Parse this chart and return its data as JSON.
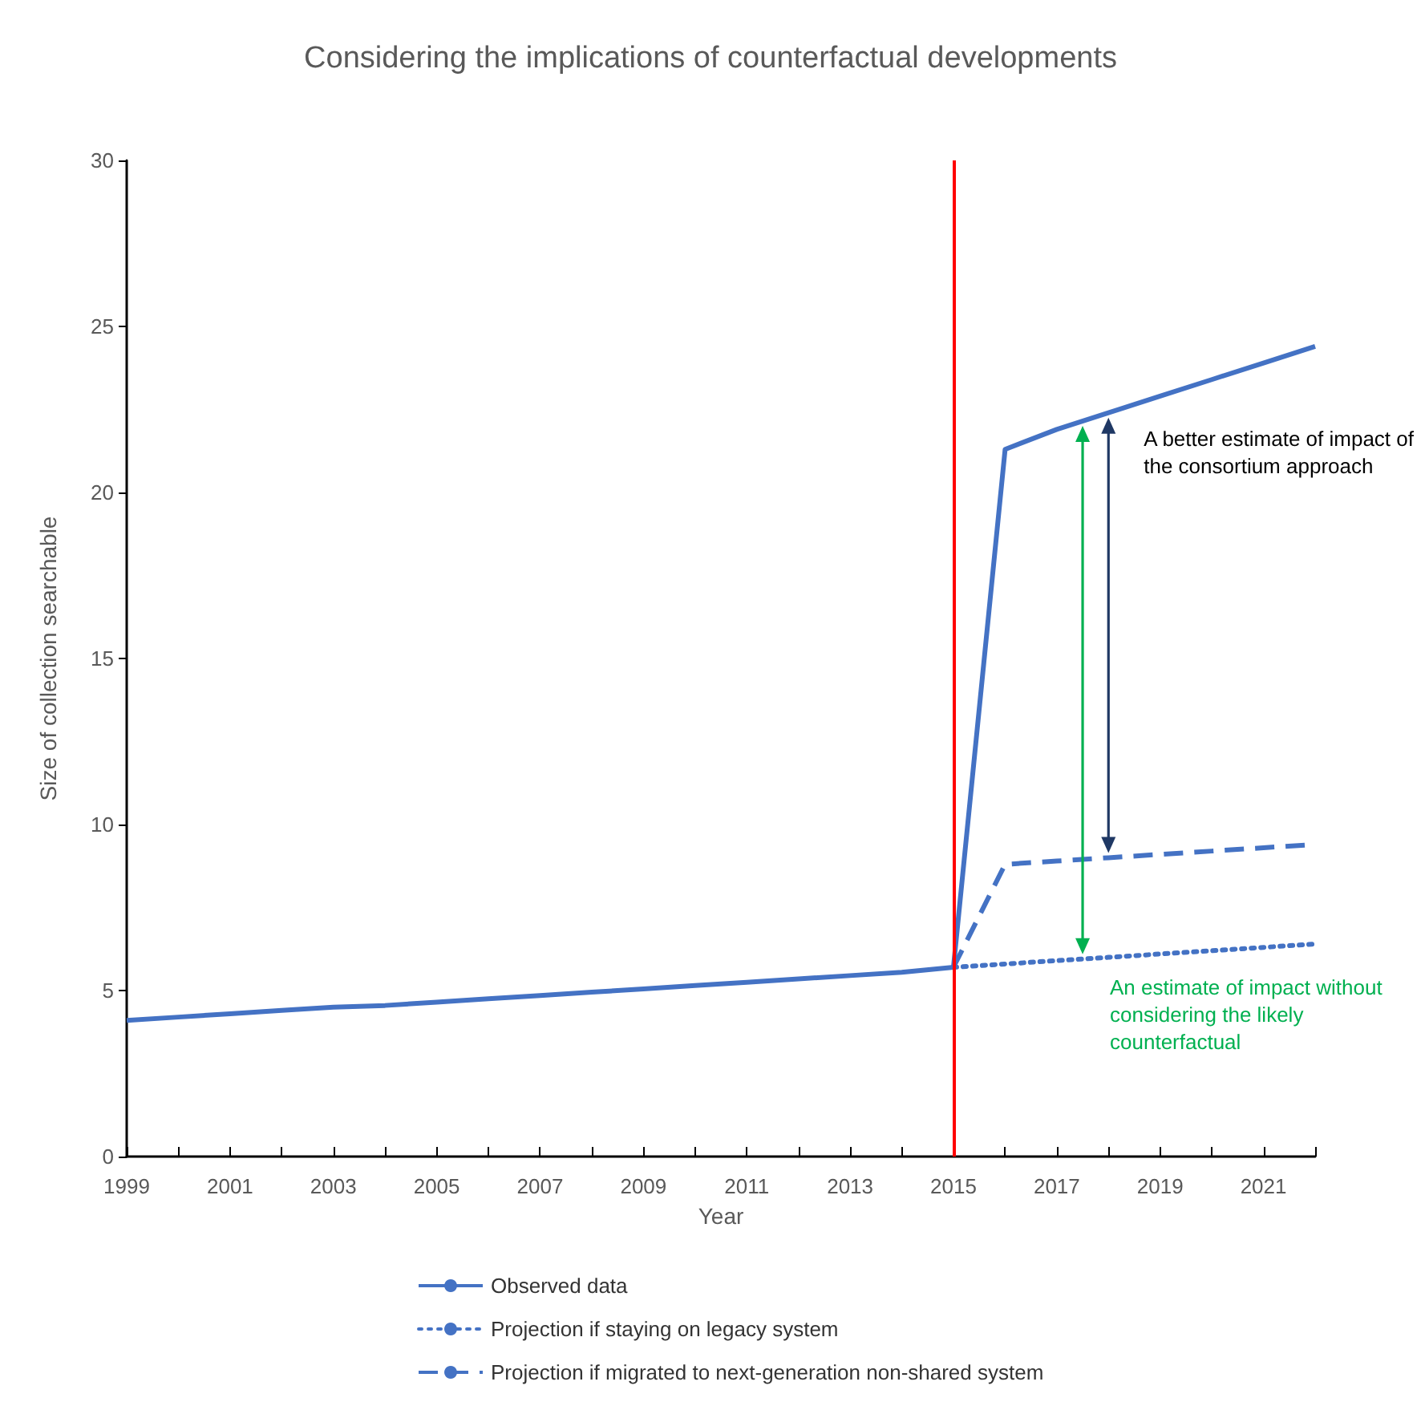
{
  "chart_data": {
    "type": "line",
    "title": "Considering the implications of counterfactual developments",
    "xlabel": "Year",
    "ylabel": "Size of collection searchable",
    "series": [
      {
        "name": "Observed data",
        "color": "#4472c4",
        "line_style": "solid",
        "x": [
          1999,
          2000,
          2001,
          2002,
          2003,
          2004,
          2005,
          2006,
          2007,
          2008,
          2009,
          2010,
          2011,
          2012,
          2013,
          2014,
          2015,
          2016,
          2017,
          2018,
          2019,
          2020,
          2021,
          2022
        ],
        "values": [
          4.1,
          4.2,
          4.3,
          4.4,
          4.5,
          4.55,
          4.65,
          4.75,
          4.85,
          4.95,
          5.05,
          5.15,
          5.25,
          5.35,
          5.45,
          5.55,
          5.7,
          21.3,
          21.9,
          22.4,
          22.9,
          23.4,
          23.9,
          24.4
        ]
      },
      {
        "name": "Projection if staying on legacy system",
        "color": "#4472c4",
        "line_style": "dotted",
        "x": [
          2015,
          2016,
          2017,
          2018,
          2019,
          2020,
          2021,
          2022
        ],
        "values": [
          5.7,
          5.8,
          5.9,
          6.0,
          6.1,
          6.2,
          6.3,
          6.4
        ]
      },
      {
        "name": "Projection if migrated to next-generation non-shared system",
        "color": "#4472c4",
        "line_style": "dashed",
        "x": [
          2015,
          2016,
          2017,
          2018,
          2019,
          2020,
          2021,
          2022
        ],
        "values": [
          5.7,
          8.8,
          8.9,
          9.0,
          9.1,
          9.2,
          9.3,
          9.4
        ]
      }
    ],
    "xlim": [
      1999,
      2022
    ],
    "xticks": [
      1999,
      {
        "value": 2000,
        "label": null
      },
      2001,
      {
        "value": 2002,
        "label": null
      },
      2003,
      {
        "value": 2004,
        "label": null
      },
      2005,
      {
        "value": 2006,
        "label": null
      },
      2007,
      {
        "value": 2008,
        "label": null
      },
      2009,
      {
        "value": 2010,
        "label": null
      },
      2011,
      {
        "value": 2012,
        "label": null
      },
      2013,
      {
        "value": 2014,
        "label": null
      },
      2015,
      {
        "value": 2016,
        "label": null
      },
      2017,
      {
        "value": 2018,
        "label": null
      },
      2019,
      {
        "value": 2020,
        "label": null
      },
      2021,
      {
        "value": 2022,
        "label": null
      }
    ],
    "ylim": [
      0,
      30
    ],
    "yticks": [
      0,
      5,
      10,
      15,
      20,
      25,
      30
    ],
    "ref_lines": [
      {
        "axis": "x",
        "value": 2015,
        "color": "#ff0000"
      }
    ],
    "annotations": [
      {
        "text": "A better estimate of impact of the consortium approach",
        "x": 2018,
        "y": 22.4
      },
      {
        "text": "An estimate of impact without considering the likely counterfactual",
        "x": 2017.5,
        "y": 5.95
      }
    ],
    "grid": false,
    "legend": "bottom",
    "marker": "none"
  }
}
